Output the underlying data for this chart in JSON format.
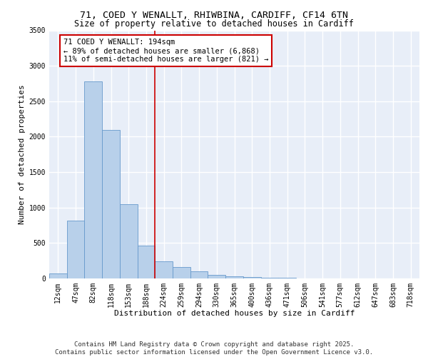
{
  "title_line1": "71, COED Y WENALLT, RHIWBINA, CARDIFF, CF14 6TN",
  "title_line2": "Size of property relative to detached houses in Cardiff",
  "xlabel": "Distribution of detached houses by size in Cardiff",
  "ylabel": "Number of detached properties",
  "bar_color": "#b8d0ea",
  "bar_edge_color": "#6699cc",
  "vline_color": "#cc0000",
  "vline_x": 5.5,
  "annotation_text": "71 COED Y WENALLT: 194sqm\n← 89% of detached houses are smaller (6,868)\n11% of semi-detached houses are larger (821) →",
  "categories": [
    "12sqm",
    "47sqm",
    "82sqm",
    "118sqm",
    "153sqm",
    "188sqm",
    "224sqm",
    "259sqm",
    "294sqm",
    "330sqm",
    "365sqm",
    "400sqm",
    "436sqm",
    "471sqm",
    "506sqm",
    "541sqm",
    "577sqm",
    "612sqm",
    "647sqm",
    "683sqm",
    "718sqm"
  ],
  "values": [
    75,
    820,
    2780,
    2100,
    1050,
    460,
    240,
    165,
    100,
    55,
    30,
    20,
    15,
    10,
    5,
    3,
    2,
    1,
    1,
    0,
    0
  ],
  "ylim": [
    0,
    3500
  ],
  "yticks": [
    0,
    500,
    1000,
    1500,
    2000,
    2500,
    3000,
    3500
  ],
  "footer_line1": "Contains HM Land Registry data © Crown copyright and database right 2025.",
  "footer_line2": "Contains public sector information licensed under the Open Government Licence v3.0.",
  "plot_bg_color": "#e8eef8",
  "grid_color": "#ffffff",
  "title_fontsize": 9.5,
  "subtitle_fontsize": 8.5,
  "axis_label_fontsize": 8,
  "tick_fontsize": 7,
  "footer_fontsize": 6.5,
  "annotation_fontsize": 7.5
}
